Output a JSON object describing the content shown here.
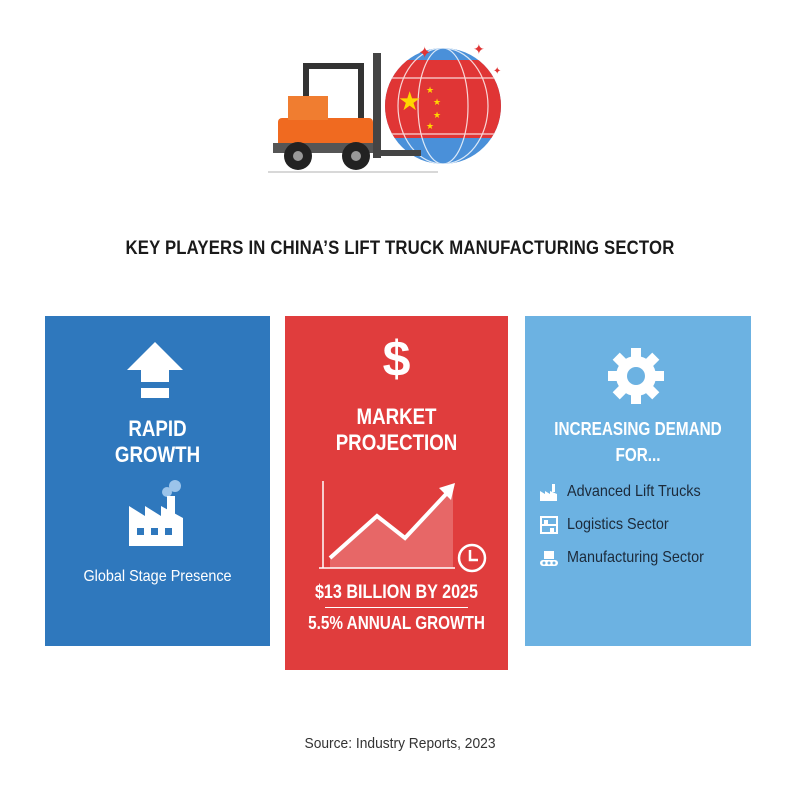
{
  "title": "KEY PLAYERS IN CHINA’S LIFT TRUCK MANUFACTURING SECTOR",
  "colors": {
    "blue_panel": "#2f78bd",
    "red_panel": "#e03d3d",
    "light_blue_panel": "#6cb2e2"
  },
  "hero": {
    "icons": [
      "forklift-icon",
      "globe-china-flag-icon"
    ]
  },
  "panels": [
    {
      "icon": "arrow-up-icon",
      "heading_line1": "RAPID",
      "heading_line2": "GROWTH",
      "secondary_icon": "factory-icon",
      "caption": "Global Stage Presence"
    },
    {
      "icon": "dollar-icon",
      "heading_line1": "MARKET",
      "heading_line2": "PROJECTION",
      "chart_icon": "rising-line-chart-icon",
      "clock_icon": "clock-icon",
      "stat1": "$13 BILLION BY 2025",
      "stat2": "5.5% ANNUAL GROWTH"
    },
    {
      "icon": "gear-icon",
      "heading": "INCREASING DEMAND FOR...",
      "items": [
        {
          "icon": "factory-icon",
          "label": "Advanced Lift Trucks"
        },
        {
          "icon": "warehouse-shelf-icon",
          "label": "Logistics Sector"
        },
        {
          "icon": "conveyor-icon",
          "label": "Manufacturing Sector"
        }
      ]
    }
  ],
  "source": "Source: Industry Reports, 2023"
}
